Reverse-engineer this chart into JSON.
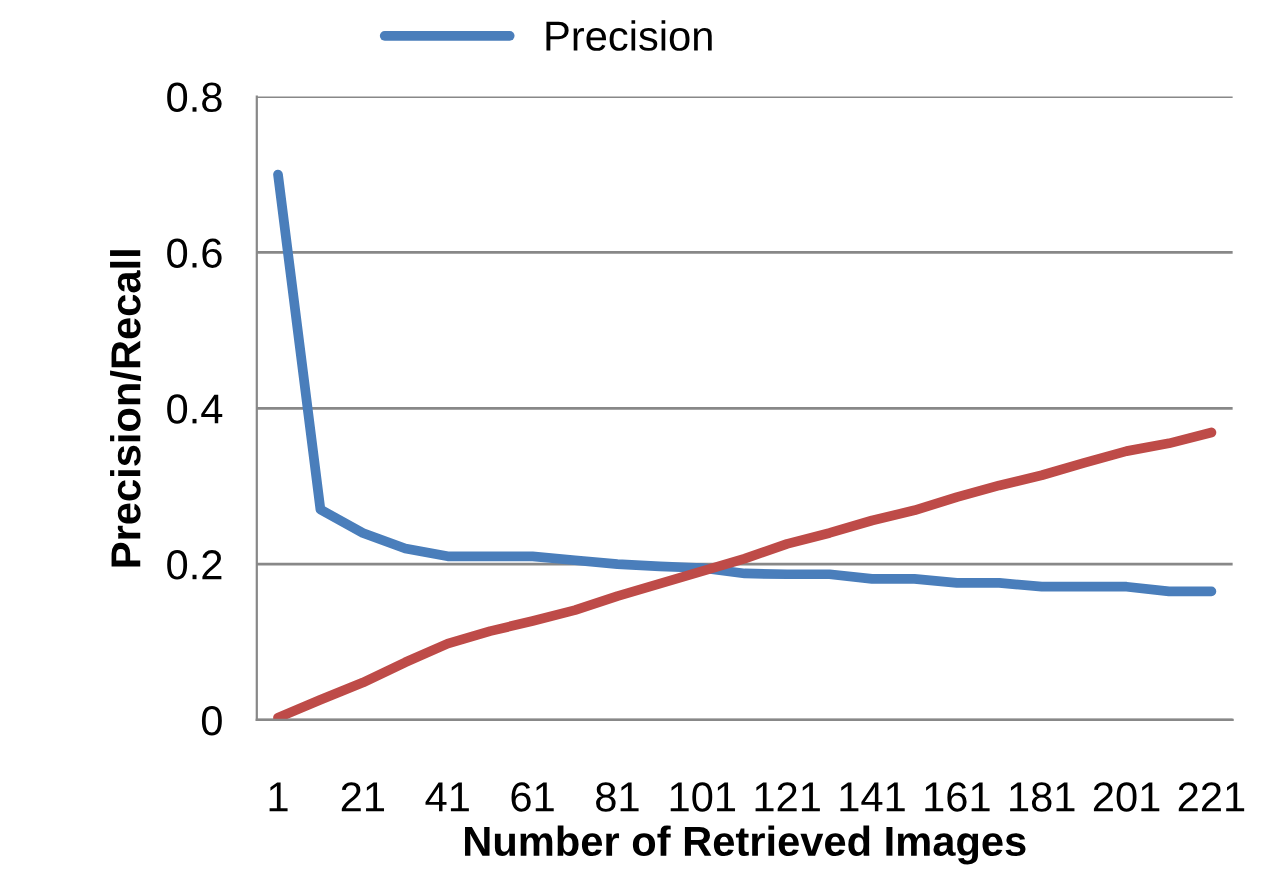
{
  "chart_data": {
    "type": "line",
    "xlabel": "Number of Retrieved Images",
    "ylabel": "Precision/Recall",
    "categories": [
      "1",
      null,
      "21",
      null,
      "41",
      null,
      "61",
      null,
      "81",
      null,
      "101",
      null,
      "121",
      null,
      "141",
      null,
      "161",
      null,
      "181",
      null,
      "201",
      null,
      "221"
    ],
    "series": [
      {
        "name": "Precision",
        "color": "#4a7ebb",
        "values": [
          0.7,
          0.27,
          0.24,
          0.22,
          0.21,
          0.21,
          0.21,
          0.205,
          0.2,
          0.197,
          0.195,
          0.188,
          0.187,
          0.187,
          0.181,
          0.181,
          0.176,
          0.176,
          0.171,
          0.171,
          0.171,
          0.165,
          0.165
        ]
      },
      {
        "color": "#be4b48",
        "values": [
          0.003,
          0.026,
          0.048,
          0.074,
          0.098,
          0.114,
          0.127,
          0.141,
          0.159,
          0.175,
          0.191,
          0.207,
          0.226,
          0.24,
          0.256,
          0.269,
          0.286,
          0.301,
          0.314,
          0.33,
          0.345,
          0.355,
          0.369
        ]
      }
    ],
    "ylim": [
      0,
      0.8
    ],
    "yticks": [
      0,
      0.2,
      0.4,
      0.6,
      0.8
    ],
    "grid": "y",
    "legend": "top",
    "marker": "none",
    "line_style": "solid"
  }
}
